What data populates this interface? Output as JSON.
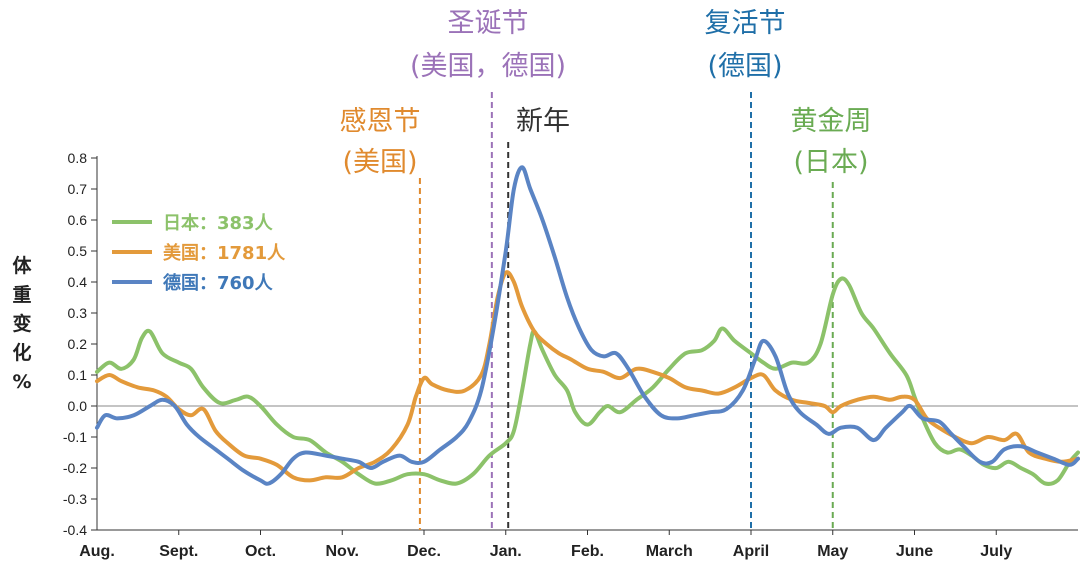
{
  "chart_data": {
    "type": "line",
    "ylabel": "体重变化%",
    "xlabels": [
      "Aug.",
      "Sept.",
      "Oct.",
      "Nov.",
      "Dec.",
      "Jan.",
      "Feb.",
      "March",
      "April",
      "May",
      "June",
      "July"
    ],
    "yticks": [
      "0.8",
      "0.7",
      "0.6",
      "0.5",
      "0.4",
      "0.3",
      "0.2",
      "0.1",
      "0.0",
      "-0.1",
      "-0.2",
      "-0.3",
      "-0.4"
    ],
    "ylim": [
      -0.4,
      0.8
    ],
    "xlim": [
      0,
      12
    ],
    "grid": false,
    "legend_position": "top-left",
    "holidays": [
      {
        "lines": [
          "感恩节",
          "(美国)"
        ],
        "x": 3.95,
        "color": "#e08a2e"
      },
      {
        "lines": [
          "圣诞节",
          "(美国，德国)"
        ],
        "x": 4.83,
        "color": "#9b72b8"
      },
      {
        "lines": [
          "新年"
        ],
        "x": 5.03,
        "color": "#333333"
      },
      {
        "lines": [
          "复活节",
          "(德国)"
        ],
        "x": 8.0,
        "color": "#1f6fa8"
      },
      {
        "lines": [
          "黄金周",
          "(日本)"
        ],
        "x": 9.0,
        "color": "#6aab53"
      }
    ],
    "series": [
      {
        "name": "日本：383人",
        "color": "#8cc26a",
        "points": [
          [
            0,
            0.11
          ],
          [
            0.15,
            0.14
          ],
          [
            0.3,
            0.12
          ],
          [
            0.45,
            0.15
          ],
          [
            0.55,
            0.22
          ],
          [
            0.65,
            0.24
          ],
          [
            0.8,
            0.17
          ],
          [
            1.0,
            0.14
          ],
          [
            1.15,
            0.12
          ],
          [
            1.3,
            0.06
          ],
          [
            1.5,
            0.01
          ],
          [
            1.7,
            0.02
          ],
          [
            1.85,
            0.03
          ],
          [
            2.0,
            0.0
          ],
          [
            2.2,
            -0.06
          ],
          [
            2.4,
            -0.1
          ],
          [
            2.6,
            -0.11
          ],
          [
            2.8,
            -0.15
          ],
          [
            3.0,
            -0.18
          ],
          [
            3.2,
            -0.22
          ],
          [
            3.4,
            -0.25
          ],
          [
            3.6,
            -0.24
          ],
          [
            3.8,
            -0.22
          ],
          [
            4.0,
            -0.22
          ],
          [
            4.2,
            -0.24
          ],
          [
            4.4,
            -0.25
          ],
          [
            4.6,
            -0.22
          ],
          [
            4.8,
            -0.16
          ],
          [
            5.0,
            -0.12
          ],
          [
            5.1,
            -0.08
          ],
          [
            5.2,
            0.05
          ],
          [
            5.3,
            0.2
          ],
          [
            5.35,
            0.24
          ],
          [
            5.45,
            0.18
          ],
          [
            5.6,
            0.1
          ],
          [
            5.75,
            0.05
          ],
          [
            5.85,
            -0.02
          ],
          [
            6.0,
            -0.06
          ],
          [
            6.15,
            -0.02
          ],
          [
            6.25,
            0.0
          ],
          [
            6.4,
            -0.02
          ],
          [
            6.6,
            0.02
          ],
          [
            6.8,
            0.06
          ],
          [
            7.0,
            0.12
          ],
          [
            7.2,
            0.17
          ],
          [
            7.4,
            0.18
          ],
          [
            7.55,
            0.21
          ],
          [
            7.65,
            0.25
          ],
          [
            7.8,
            0.21
          ],
          [
            8.0,
            0.17
          ],
          [
            8.15,
            0.14
          ],
          [
            8.3,
            0.12
          ],
          [
            8.5,
            0.14
          ],
          [
            8.7,
            0.14
          ],
          [
            8.85,
            0.2
          ],
          [
            9.0,
            0.36
          ],
          [
            9.1,
            0.41
          ],
          [
            9.2,
            0.39
          ],
          [
            9.35,
            0.3
          ],
          [
            9.5,
            0.25
          ],
          [
            9.7,
            0.17
          ],
          [
            9.9,
            0.1
          ],
          [
            10.0,
            0.03
          ],
          [
            10.1,
            -0.04
          ],
          [
            10.25,
            -0.12
          ],
          [
            10.4,
            -0.15
          ],
          [
            10.55,
            -0.14
          ],
          [
            10.7,
            -0.16
          ],
          [
            10.85,
            -0.19
          ],
          [
            11.0,
            -0.2
          ],
          [
            11.15,
            -0.18
          ],
          [
            11.3,
            -0.2
          ],
          [
            11.45,
            -0.22
          ],
          [
            11.6,
            -0.25
          ],
          [
            11.75,
            -0.24
          ],
          [
            11.9,
            -0.18
          ],
          [
            12.0,
            -0.15
          ]
        ]
      },
      {
        "name": "美国：1781人",
        "color": "#e39a3b",
        "points": [
          [
            0,
            0.08
          ],
          [
            0.15,
            0.1
          ],
          [
            0.3,
            0.08
          ],
          [
            0.5,
            0.06
          ],
          [
            0.7,
            0.05
          ],
          [
            0.85,
            0.03
          ],
          [
            1.0,
            -0.01
          ],
          [
            1.15,
            -0.03
          ],
          [
            1.3,
            -0.01
          ],
          [
            1.45,
            -0.08
          ],
          [
            1.6,
            -0.12
          ],
          [
            1.8,
            -0.16
          ],
          [
            2.0,
            -0.17
          ],
          [
            2.2,
            -0.19
          ],
          [
            2.4,
            -0.23
          ],
          [
            2.6,
            -0.24
          ],
          [
            2.8,
            -0.23
          ],
          [
            3.0,
            -0.23
          ],
          [
            3.2,
            -0.2
          ],
          [
            3.4,
            -0.18
          ],
          [
            3.6,
            -0.14
          ],
          [
            3.8,
            -0.06
          ],
          [
            3.9,
            0.03
          ],
          [
            4.0,
            0.09
          ],
          [
            4.1,
            0.07
          ],
          [
            4.3,
            0.05
          ],
          [
            4.5,
            0.05
          ],
          [
            4.7,
            0.1
          ],
          [
            4.8,
            0.2
          ],
          [
            4.9,
            0.35
          ],
          [
            5.0,
            0.43
          ],
          [
            5.1,
            0.4
          ],
          [
            5.2,
            0.32
          ],
          [
            5.35,
            0.24
          ],
          [
            5.5,
            0.2
          ],
          [
            5.65,
            0.17
          ],
          [
            5.8,
            0.15
          ],
          [
            6.0,
            0.12
          ],
          [
            6.2,
            0.11
          ],
          [
            6.4,
            0.09
          ],
          [
            6.6,
            0.12
          ],
          [
            6.8,
            0.11
          ],
          [
            7.0,
            0.09
          ],
          [
            7.2,
            0.06
          ],
          [
            7.4,
            0.05
          ],
          [
            7.6,
            0.04
          ],
          [
            7.8,
            0.06
          ],
          [
            8.0,
            0.09
          ],
          [
            8.15,
            0.1
          ],
          [
            8.3,
            0.05
          ],
          [
            8.5,
            0.02
          ],
          [
            8.7,
            0.01
          ],
          [
            8.9,
            0.0
          ],
          [
            9.0,
            -0.02
          ],
          [
            9.1,
            0.0
          ],
          [
            9.3,
            0.02
          ],
          [
            9.5,
            0.03
          ],
          [
            9.7,
            0.02
          ],
          [
            9.85,
            0.03
          ],
          [
            10.0,
            0.02
          ],
          [
            10.15,
            -0.04
          ],
          [
            10.3,
            -0.07
          ],
          [
            10.5,
            -0.1
          ],
          [
            10.7,
            -0.12
          ],
          [
            10.9,
            -0.1
          ],
          [
            11.1,
            -0.11
          ],
          [
            11.25,
            -0.09
          ],
          [
            11.4,
            -0.15
          ],
          [
            11.6,
            -0.17
          ],
          [
            11.8,
            -0.18
          ],
          [
            12.0,
            -0.17
          ]
        ]
      },
      {
        "name": "德国：760人",
        "color": "#5a84c4",
        "points": [
          [
            0,
            -0.07
          ],
          [
            0.1,
            -0.03
          ],
          [
            0.25,
            -0.04
          ],
          [
            0.45,
            -0.03
          ],
          [
            0.65,
            0.0
          ],
          [
            0.8,
            0.02
          ],
          [
            0.95,
            0.0
          ],
          [
            1.1,
            -0.06
          ],
          [
            1.25,
            -0.1
          ],
          [
            1.45,
            -0.14
          ],
          [
            1.6,
            -0.17
          ],
          [
            1.8,
            -0.21
          ],
          [
            2.0,
            -0.24
          ],
          [
            2.1,
            -0.25
          ],
          [
            2.25,
            -0.22
          ],
          [
            2.4,
            -0.17
          ],
          [
            2.55,
            -0.15
          ],
          [
            2.8,
            -0.16
          ],
          [
            3.0,
            -0.17
          ],
          [
            3.2,
            -0.18
          ],
          [
            3.35,
            -0.2
          ],
          [
            3.5,
            -0.18
          ],
          [
            3.7,
            -0.16
          ],
          [
            3.85,
            -0.18
          ],
          [
            4.0,
            -0.18
          ],
          [
            4.2,
            -0.14
          ],
          [
            4.4,
            -0.1
          ],
          [
            4.55,
            -0.05
          ],
          [
            4.7,
            0.05
          ],
          [
            4.85,
            0.25
          ],
          [
            5.0,
            0.5
          ],
          [
            5.1,
            0.7
          ],
          [
            5.2,
            0.77
          ],
          [
            5.3,
            0.7
          ],
          [
            5.45,
            0.6
          ],
          [
            5.6,
            0.48
          ],
          [
            5.75,
            0.35
          ],
          [
            5.9,
            0.25
          ],
          [
            6.05,
            0.18
          ],
          [
            6.2,
            0.16
          ],
          [
            6.35,
            0.17
          ],
          [
            6.5,
            0.12
          ],
          [
            6.7,
            0.03
          ],
          [
            6.9,
            -0.03
          ],
          [
            7.1,
            -0.04
          ],
          [
            7.3,
            -0.03
          ],
          [
            7.5,
            -0.02
          ],
          [
            7.7,
            -0.01
          ],
          [
            7.9,
            0.05
          ],
          [
            8.05,
            0.15
          ],
          [
            8.15,
            0.21
          ],
          [
            8.3,
            0.16
          ],
          [
            8.45,
            0.04
          ],
          [
            8.6,
            -0.02
          ],
          [
            8.8,
            -0.06
          ],
          [
            8.95,
            -0.09
          ],
          [
            9.1,
            -0.07
          ],
          [
            9.3,
            -0.07
          ],
          [
            9.5,
            -0.11
          ],
          [
            9.65,
            -0.07
          ],
          [
            9.85,
            -0.02
          ],
          [
            9.95,
            0.0
          ],
          [
            10.1,
            -0.04
          ],
          [
            10.3,
            -0.05
          ],
          [
            10.45,
            -0.09
          ],
          [
            10.6,
            -0.13
          ],
          [
            10.8,
            -0.18
          ],
          [
            10.95,
            -0.18
          ],
          [
            11.1,
            -0.14
          ],
          [
            11.3,
            -0.13
          ],
          [
            11.5,
            -0.15
          ],
          [
            11.7,
            -0.17
          ],
          [
            11.9,
            -0.19
          ],
          [
            12.0,
            -0.17
          ]
        ]
      }
    ]
  }
}
